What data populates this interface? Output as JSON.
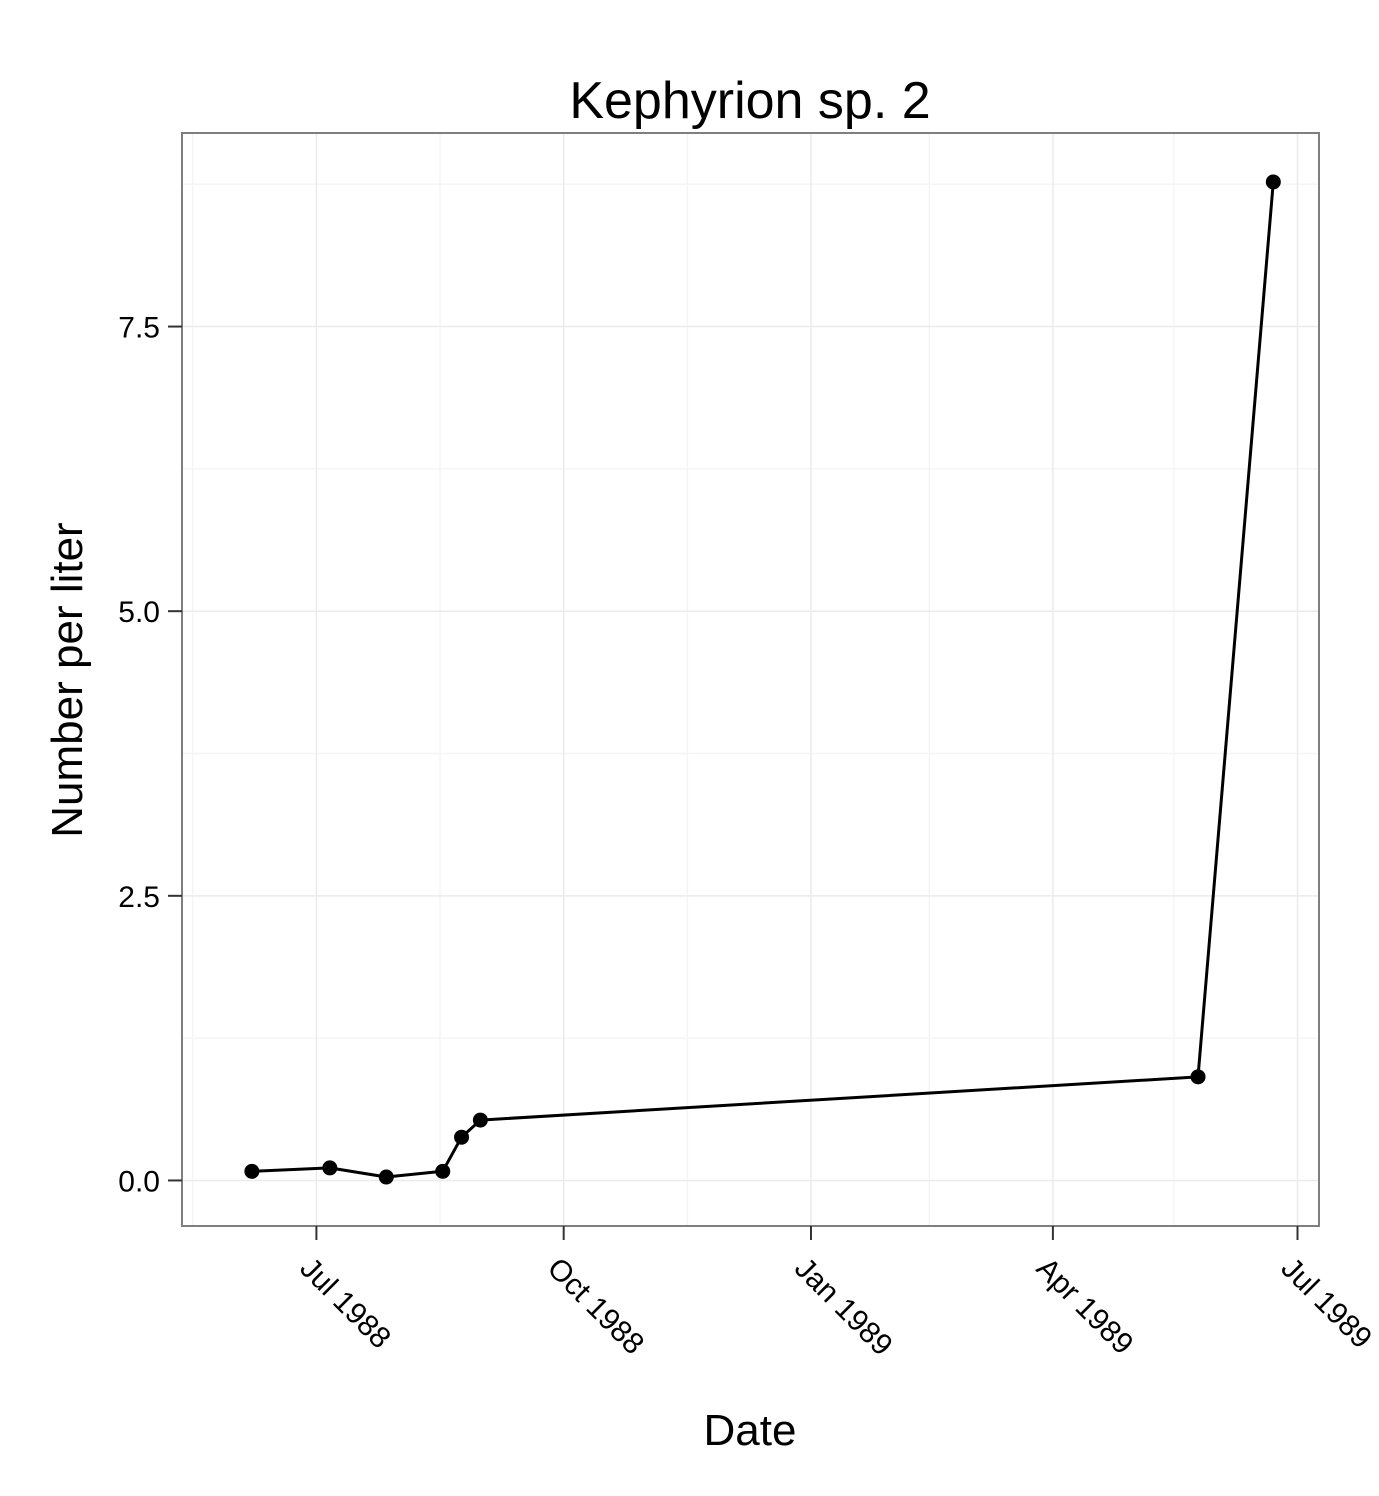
{
  "chart_data": {
    "type": "line",
    "title": "Kephyrion sp. 2",
    "xlabel": "Date",
    "ylabel": "Number per liter",
    "x_ticks": [
      {
        "date": "1988-07-01",
        "label": "Jul 1988"
      },
      {
        "date": "1988-10-01",
        "label": "Oct 1988"
      },
      {
        "date": "1989-01-01",
        "label": "Jan 1989"
      },
      {
        "date": "1989-04-01",
        "label": "Apr 1989"
      },
      {
        "date": "1989-07-01",
        "label": "Jul 1989"
      }
    ],
    "x_minor_ticks": [
      "1988-05-16",
      "1988-08-16",
      "1988-11-16",
      "1989-02-14",
      "1989-05-16"
    ],
    "y_ticks": [
      {
        "value": 0.0,
        "label": "0.0"
      },
      {
        "value": 2.5,
        "label": "2.5"
      },
      {
        "value": 5.0,
        "label": "5.0"
      },
      {
        "value": 7.5,
        "label": "7.5"
      }
    ],
    "y_minor_ticks": [
      1.25,
      3.75,
      6.25,
      8.75
    ],
    "xlim": [
      "1988-05-12",
      "1989-07-09"
    ],
    "ylim": [
      -0.4,
      9.2
    ],
    "grid": true,
    "series": [
      {
        "x": [
          "1988-06-07",
          "1988-07-06",
          "1988-07-27",
          "1988-08-17",
          "1988-08-24",
          "1988-08-31",
          "1989-05-25",
          "1989-06-22"
        ],
        "y": [
          0.08,
          0.11,
          0.03,
          0.08,
          0.38,
          0.53,
          0.91,
          8.77
        ]
      }
    ],
    "colors": {
      "line": "#000000",
      "point": "#000000",
      "panel_border": "#7f7f7f",
      "grid_major": "#ebebeb",
      "grid_minor": "#f5f5f5"
    }
  }
}
